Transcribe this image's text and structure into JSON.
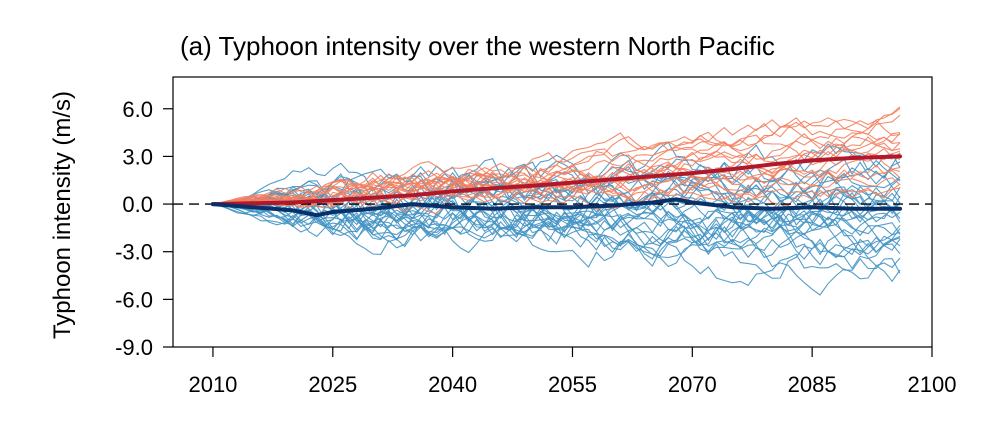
{
  "chart_data": {
    "type": "line",
    "title": "(a) Typhoon intensity over the western North Pacific",
    "xlabel": "",
    "ylabel": "Typhoon intensity (m/s)",
    "xlim": [
      2005,
      2100
    ],
    "ylim": [
      -9.0,
      8.0
    ],
    "x_ticks": [
      2010,
      2025,
      2040,
      2055,
      2070,
      2085,
      2100
    ],
    "x_tick_labels": [
      "2010",
      "2025",
      "2040",
      "2055",
      "2070",
      "2085",
      "2100"
    ],
    "y_ticks": [
      -9.0,
      -6.0,
      -3.0,
      0.0,
      3.0,
      6.0
    ],
    "y_tick_labels": [
      "-9.0",
      "-6.0",
      "-3.0",
      "0.0",
      "3.0",
      "6.0"
    ],
    "reference_line": {
      "y": 0.0,
      "style": "dashed"
    },
    "series": [
      {
        "color": "#b2182b",
        "role": "ensemble mean (warm)",
        "x": [
          2010,
          2015,
          2020,
          2025,
          2030,
          2035,
          2040,
          2045,
          2050,
          2055,
          2060,
          2065,
          2070,
          2075,
          2080,
          2085,
          2090,
          2096
        ],
        "values": [
          0.0,
          0.05,
          0.1,
          0.25,
          0.4,
          0.55,
          0.8,
          1.0,
          1.15,
          1.35,
          1.55,
          1.75,
          1.95,
          2.2,
          2.5,
          2.75,
          2.9,
          3.0
        ]
      },
      {
        "color": "#08306b",
        "role": "ensemble mean (cool)",
        "x": [
          2010,
          2015,
          2020,
          2023,
          2025,
          2030,
          2035,
          2040,
          2045,
          2050,
          2055,
          2060,
          2065,
          2068,
          2070,
          2075,
          2080,
          2085,
          2090,
          2096
        ],
        "values": [
          0.0,
          -0.2,
          -0.4,
          -0.7,
          -0.5,
          -0.3,
          0.0,
          -0.2,
          -0.3,
          -0.2,
          -0.2,
          -0.1,
          0.1,
          0.3,
          0.1,
          -0.2,
          -0.3,
          -0.2,
          -0.3,
          -0.3
        ]
      }
    ],
    "ensemble_members": {
      "warm_color": "#f4805f",
      "cool_color": "#4393c3",
      "warm_count": 18,
      "cool_count": 30,
      "x_start": 2010,
      "x_end": 2096,
      "warm_end_range": [
        1.0,
        5.6
      ],
      "cool_end_range": [
        -4.2,
        2.5
      ]
    },
    "grid": false,
    "legend": "none"
  }
}
